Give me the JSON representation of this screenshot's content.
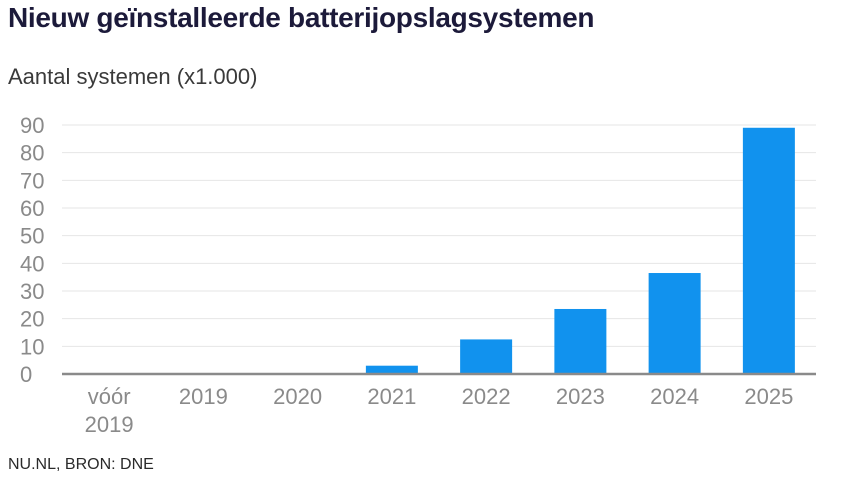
{
  "chart_data": {
    "type": "bar",
    "title": "Nieuw geïnstalleerde batterijopslagsystemen",
    "subtitle": "Aantal systemen (x1.000)",
    "categories": [
      [
        "vóór",
        "2019"
      ],
      [
        "2019"
      ],
      [
        "2020"
      ],
      [
        "2021"
      ],
      [
        "2022"
      ],
      [
        "2023"
      ],
      [
        "2024"
      ],
      [
        "2025"
      ]
    ],
    "values": [
      0,
      0,
      0,
      3,
      12.5,
      23.5,
      36.5,
      89
    ],
    "ylim": [
      0,
      90
    ],
    "yticks": [
      0,
      10,
      20,
      30,
      40,
      50,
      60,
      70,
      80,
      90
    ],
    "grid": true,
    "bar_color": "#1192ee",
    "gridline_color": "#e6e6e6",
    "axis_color": "#8a8a8a"
  },
  "source": "NU.NL, BRON: DNE"
}
